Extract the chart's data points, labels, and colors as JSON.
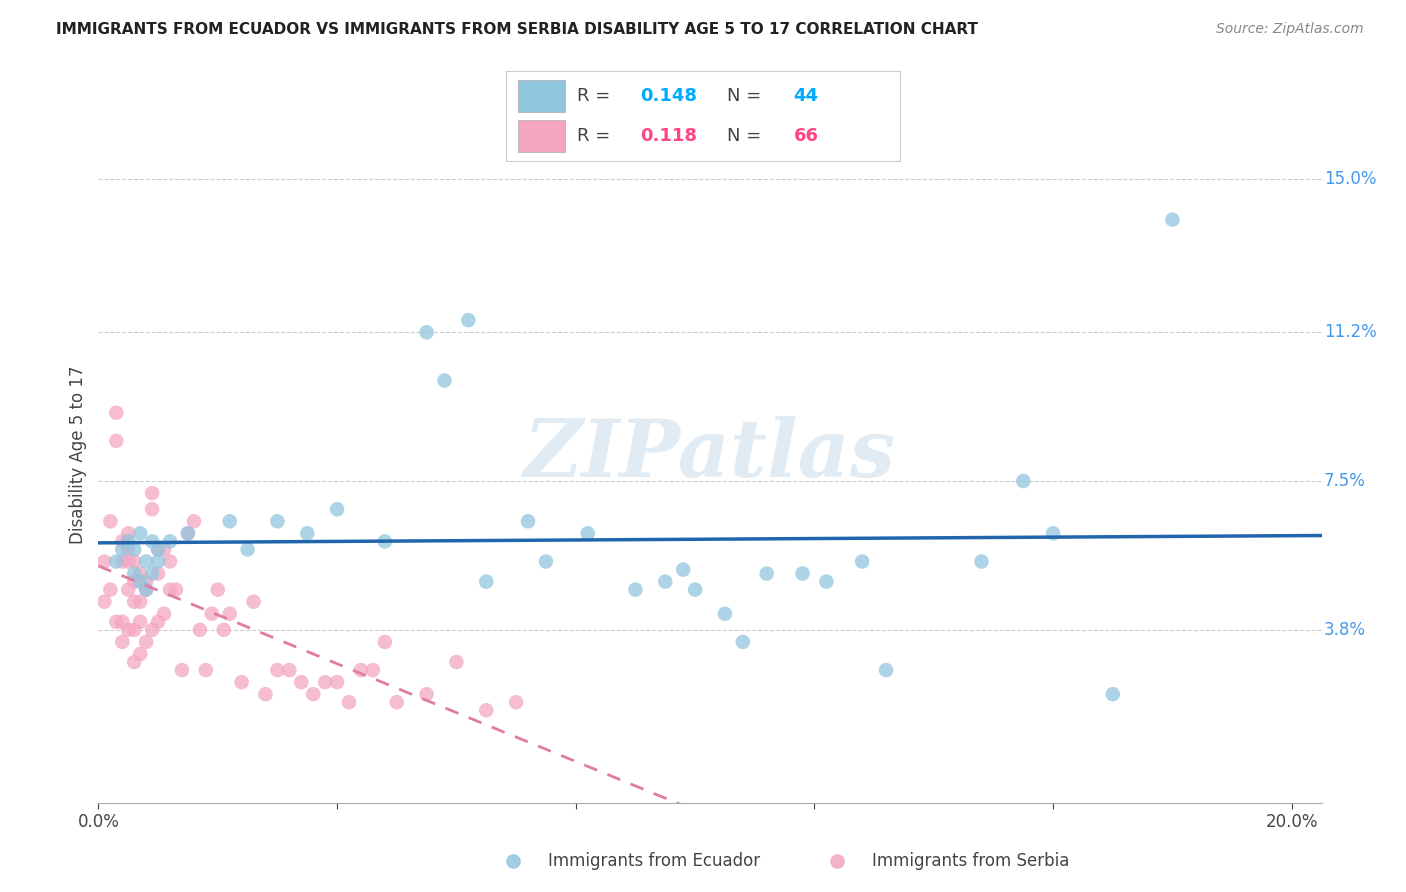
{
  "title": "IMMIGRANTS FROM ECUADOR VS IMMIGRANTS FROM SERBIA DISABILITY AGE 5 TO 17 CORRELATION CHART",
  "source": "Source: ZipAtlas.com",
  "ylabel": "Disability Age 5 to 17",
  "xlim": [
    0.0,
    0.205
  ],
  "ylim": [
    -0.005,
    0.168
  ],
  "yticks_right": [
    0.038,
    0.075,
    0.112,
    0.15
  ],
  "ytick_labels_right": [
    "3.8%",
    "7.5%",
    "11.2%",
    "15.0%"
  ],
  "ecuador_R": "0.148",
  "ecuador_N": "44",
  "serbia_R": "0.118",
  "serbia_N": "66",
  "ecuador_color": "#92c5de",
  "serbia_color": "#f4a6c0",
  "ecuador_line_color": "#2166ac",
  "serbia_line_color": "#e07ca0",
  "ecuador_R_color": "#00aaff",
  "ecuador_N_color": "#00aaff",
  "serbia_R_color": "#ff4488",
  "serbia_N_color": "#ff4488",
  "watermark": "ZIPatlas",
  "ecuador_points_x": [
    0.003,
    0.004,
    0.005,
    0.006,
    0.006,
    0.007,
    0.007,
    0.008,
    0.008,
    0.009,
    0.009,
    0.01,
    0.01,
    0.012,
    0.015,
    0.022,
    0.025,
    0.03,
    0.035,
    0.04,
    0.048,
    0.055,
    0.058,
    0.062,
    0.065,
    0.072,
    0.075,
    0.082,
    0.09,
    0.095,
    0.098,
    0.1,
    0.105,
    0.108,
    0.112,
    0.118,
    0.122,
    0.128,
    0.132,
    0.148,
    0.155,
    0.16,
    0.17,
    0.18
  ],
  "ecuador_points_y": [
    0.055,
    0.058,
    0.06,
    0.052,
    0.058,
    0.05,
    0.062,
    0.048,
    0.055,
    0.052,
    0.06,
    0.055,
    0.058,
    0.06,
    0.062,
    0.065,
    0.058,
    0.065,
    0.062,
    0.068,
    0.06,
    0.112,
    0.1,
    0.115,
    0.05,
    0.065,
    0.055,
    0.062,
    0.048,
    0.05,
    0.053,
    0.048,
    0.042,
    0.035,
    0.052,
    0.052,
    0.05,
    0.055,
    0.028,
    0.055,
    0.075,
    0.062,
    0.022,
    0.14
  ],
  "serbia_points_x": [
    0.001,
    0.001,
    0.002,
    0.002,
    0.003,
    0.003,
    0.003,
    0.004,
    0.004,
    0.004,
    0.004,
    0.005,
    0.005,
    0.005,
    0.005,
    0.005,
    0.006,
    0.006,
    0.006,
    0.006,
    0.006,
    0.007,
    0.007,
    0.007,
    0.007,
    0.008,
    0.008,
    0.008,
    0.009,
    0.009,
    0.009,
    0.01,
    0.01,
    0.01,
    0.011,
    0.011,
    0.012,
    0.012,
    0.013,
    0.014,
    0.015,
    0.016,
    0.017,
    0.018,
    0.019,
    0.02,
    0.021,
    0.022,
    0.024,
    0.026,
    0.028,
    0.03,
    0.032,
    0.034,
    0.036,
    0.038,
    0.04,
    0.042,
    0.044,
    0.046,
    0.048,
    0.05,
    0.055,
    0.06,
    0.065,
    0.07
  ],
  "serbia_points_y": [
    0.055,
    0.045,
    0.065,
    0.048,
    0.085,
    0.092,
    0.04,
    0.055,
    0.06,
    0.04,
    0.035,
    0.062,
    0.058,
    0.048,
    0.055,
    0.038,
    0.05,
    0.055,
    0.045,
    0.038,
    0.03,
    0.052,
    0.045,
    0.04,
    0.032,
    0.05,
    0.048,
    0.035,
    0.068,
    0.072,
    0.038,
    0.052,
    0.058,
    0.04,
    0.058,
    0.042,
    0.055,
    0.048,
    0.048,
    0.028,
    0.062,
    0.065,
    0.038,
    0.028,
    0.042,
    0.048,
    0.038,
    0.042,
    0.025,
    0.045,
    0.022,
    0.028,
    0.028,
    0.025,
    0.022,
    0.025,
    0.025,
    0.02,
    0.028,
    0.028,
    0.035,
    0.02,
    0.022,
    0.03,
    0.018,
    0.02
  ]
}
